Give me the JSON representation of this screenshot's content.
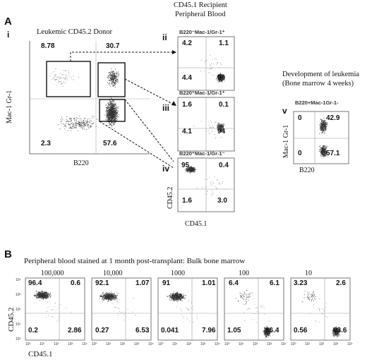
{
  "panel_a": {
    "letter": "A",
    "recipient_title": "CD45.1 Recipient Peripheral Blood",
    "recipient_title_line1": "CD45.1 Recipient",
    "recipient_title_line2": "Peripheral Blood",
    "donor": {
      "roman": "i",
      "title": "Leukemic CD45.2 Donor",
      "x_axis": "B220",
      "y_axis": "Mac-1 Gr-1",
      "quadrants": {
        "ul": "8.78",
        "ur": "30.7",
        "ll": "2.3",
        "lr": "57.6"
      }
    },
    "recipients": [
      {
        "roman": "ii",
        "gate": "B220⁻Mac-1/Gr-1⁺",
        "quadrants": {
          "ul": "4.2",
          "ur": "1.1",
          "ll": "4.4",
          "lr": "90"
        }
      },
      {
        "roman": "iii",
        "gate": "B220⁺Mac-1/Gr-1⁺",
        "quadrants": {
          "ul": "1.6",
          "ur": "0.1",
          "ll": "4.1",
          "lr": "94"
        }
      },
      {
        "roman": "iv",
        "gate": "B220⁺Mac-1/Gr-1⁻",
        "quadrants": {
          "ul": "95",
          "ur": "0.4",
          "ll": "1.6",
          "lr": "3.0"
        }
      }
    ],
    "recipient_x_axis": "CD45.1",
    "recipient_y_axis": "CD45.2",
    "leukemia": {
      "roman": "v",
      "title_line1": "Development of leukemia",
      "title_line2": "(Bone marrow 4 weeks)",
      "gate": "B220+Mac-1Gr-1-",
      "x_axis": "B220",
      "y_axis": "Mac-1 Gr-1",
      "quadrants": {
        "ul": "0",
        "ur": "42.9",
        "ll": "0",
        "lr": "57.1"
      }
    }
  },
  "panel_b": {
    "letter": "B",
    "title": "Peripheral blood stained at 1 month post-transplant: Bulk bone marrow",
    "x_axis": "CD45.1",
    "y_axis": "CD45.2",
    "ticks": [
      "10⁰",
      "10¹",
      "10²",
      "10³",
      "10⁴"
    ],
    "plots": [
      {
        "dose": "100,000",
        "quadrants": {
          "ul": "96.4",
          "ur": "0.6",
          "ll": "0.2",
          "lr": "2.86"
        }
      },
      {
        "dose": "10,000",
        "quadrants": {
          "ul": "92.1",
          "ur": "1.07",
          "ll": "0.27",
          "lr": "6.53"
        }
      },
      {
        "dose": "1000",
        "quadrants": {
          "ul": "91",
          "ur": "1.01",
          "ll": "0.041",
          "lr": "7.96"
        }
      },
      {
        "dose": "100",
        "quadrants": {
          "ul": "6.4",
          "ur": "6.1",
          "ll": "1.05",
          "lr": "86.4"
        }
      },
      {
        "dose": "10",
        "quadrants": {
          "ul": "3.23",
          "ur": "2.6",
          "ll": "0.56",
          "lr": "93.6"
        }
      }
    ]
  }
}
